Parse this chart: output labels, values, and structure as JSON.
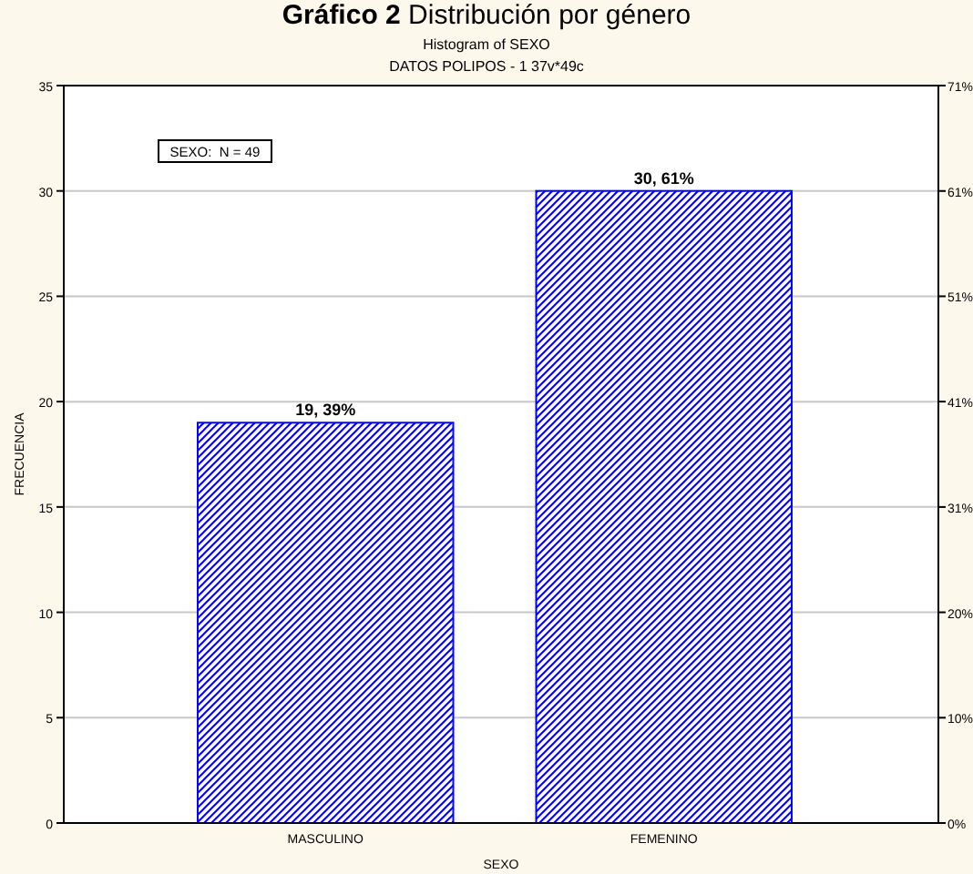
{
  "chart_data": {
    "type": "bar",
    "title": "Gráfico 2 Distribución por género",
    "subtitle": "Histogram of SEXO\nDATOS POLIPOS - 1 37v*49c",
    "xlabel": "SEXO",
    "ylabel": "FRECUENCIA",
    "categories": [
      "MASCULINO",
      "FEMENINO"
    ],
    "series": [
      {
        "color": "#0000ff",
        "values": [
          19,
          30
        ],
        "value_labels": [
          "19, 39%",
          "30, 61%"
        ]
      }
    ],
    "ylim": [
      0,
      35
    ],
    "yticks": [
      0,
      5,
      10,
      15,
      20,
      25,
      30,
      35
    ],
    "y2lim": [
      0,
      71.43
    ],
    "y2ticks": [
      {
        "value": 0,
        "label": "0%"
      },
      {
        "value": 10.2,
        "label": "10%"
      },
      {
        "value": 20.41,
        "label": "20%"
      },
      {
        "value": 30.61,
        "label": "31%"
      },
      {
        "value": 40.82,
        "label": "41%"
      },
      {
        "value": 51.02,
        "label": "51%"
      },
      {
        "value": 61.22,
        "label": "61%"
      },
      {
        "value": 71.43,
        "label": "71%"
      }
    ],
    "grid": "y",
    "annotations": [
      "SEXO:  N = 49"
    ]
  }
}
